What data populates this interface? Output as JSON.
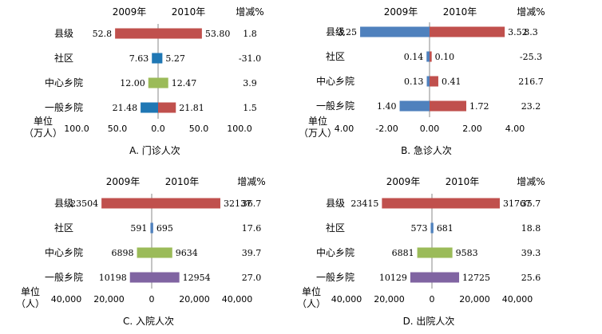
{
  "chart_data": [
    {
      "type": "bar",
      "title": "A. 门诊人次",
      "left_header": "2009年",
      "right_header": "2010年",
      "change_header": "增减%",
      "unit_label": [
        "单位",
        "（万人）"
      ],
      "categories": [
        "县级",
        "社区",
        "中心乡院",
        "一般乡院"
      ],
      "series": [
        {
          "values": [
            52.8,
            7.63,
            12.0,
            21.48
          ],
          "labels": [
            "52.8",
            "7.63",
            "12.00",
            "21.48"
          ]
        },
        {
          "values": [
            53.8,
            5.27,
            12.47,
            21.81
          ],
          "labels": [
            "53.80",
            "5.27",
            "12.47",
            "21.81"
          ]
        }
      ],
      "changes": [
        "1.8",
        "-31.0",
        "3.9",
        "1.5"
      ],
      "xlim": [
        -100,
        100
      ],
      "ticks": [
        -100,
        -50,
        0,
        50,
        100
      ],
      "tick_labels": [
        "100.0",
        "50.0",
        "0.0",
        "50.0",
        "100.0"
      ],
      "colors": {
        "neg_tick": "#c0392b",
        "pos_tick": "#000000",
        "bars_2009": [
          "#c0504d",
          "#1f77b4",
          "#9bbb59",
          "#1f77b4"
        ],
        "bars_2010": [
          "#c0504d",
          "#1f77b4",
          "#9bbb59",
          "#c0504d"
        ]
      }
    },
    {
      "type": "bar",
      "title": "B. 急诊人次",
      "left_header": "2009年",
      "right_header": "2010年",
      "change_header": "增减%",
      "unit_label": [
        "单位",
        "（万人）"
      ],
      "categories": [
        "县级",
        "社区",
        "中心乡院",
        "一般乡院"
      ],
      "series": [
        {
          "values": [
            3.25,
            0.14,
            0.13,
            1.4
          ],
          "labels": [
            "3.25",
            "0.14",
            "0.13",
            "1.40"
          ]
        },
        {
          "values": [
            3.52,
            0.1,
            0.41,
            1.72
          ],
          "labels": [
            "3.52",
            "0.10",
            "0.41",
            "1.72"
          ]
        }
      ],
      "changes": [
        "8.3",
        "-25.3",
        "216.7",
        "23.2"
      ],
      "xlim": [
        -4,
        4
      ],
      "ticks": [
        -4,
        -2,
        0,
        2,
        4
      ],
      "tick_labels": [
        "4.00",
        "-2.00",
        "0.00",
        "2.00",
        "4.00"
      ],
      "colors": {
        "neg_tick": "#000000",
        "pos_tick": "#000000",
        "bars_2009": [
          "#4f81bd",
          "#4f81bd",
          "#4f81bd",
          "#4f81bd"
        ],
        "bars_2010": [
          "#c0504d",
          "#c0504d",
          "#c0504d",
          "#c0504d"
        ]
      }
    },
    {
      "type": "bar",
      "title": "C. 入院人次",
      "left_header": "2009年",
      "right_header": "2010年",
      "change_header": "增减%",
      "unit_label": [
        "单位",
        "（人）"
      ],
      "categories": [
        "县级",
        "社区",
        "中心乡院",
        "一般乡院"
      ],
      "series": [
        {
          "values": [
            23504,
            591,
            6898,
            10198
          ],
          "labels": [
            "23504",
            "591",
            "6898",
            "10198"
          ]
        },
        {
          "values": [
            32137,
            695,
            9634,
            12954
          ],
          "labels": [
            "32137",
            "695",
            "9634",
            "12954"
          ]
        }
      ],
      "changes": [
        "36.7",
        "17.6",
        "39.7",
        "27.0"
      ],
      "xlim": [
        -40000,
        40000
      ],
      "ticks": [
        -40000,
        -20000,
        0,
        20000,
        40000
      ],
      "tick_labels": [
        "40,000",
        "20,000",
        "0",
        "20,000",
        "40,000"
      ],
      "colors": {
        "neg_tick": "#c0392b",
        "pos_tick": "#000000",
        "bars_2009": [
          "#c0504d",
          "#4f81bd",
          "#9bbb59",
          "#8064a2"
        ],
        "bars_2010": [
          "#c0504d",
          "#4f81bd",
          "#9bbb59",
          "#8064a2"
        ]
      }
    },
    {
      "type": "bar",
      "title": "D. 出院人次",
      "left_header": "2009年",
      "right_header": "2010年",
      "change_header": "增减%",
      "unit_label": [
        "单位",
        "（人）"
      ],
      "categories": [
        "县级",
        "社区",
        "中心乡院",
        "一般乡院"
      ],
      "series": [
        {
          "values": [
            23415,
            573,
            6881,
            10129
          ],
          "labels": [
            "23415",
            "573",
            "6881",
            "10129"
          ]
        },
        {
          "values": [
            31767,
            681,
            9583,
            12725
          ],
          "labels": [
            "31767",
            "681",
            "9583",
            "12725"
          ]
        }
      ],
      "changes": [
        "35.7",
        "18.8",
        "39.3",
        "25.6"
      ],
      "xlim": [
        -40000,
        40000
      ],
      "ticks": [
        -40000,
        -20000,
        0,
        20000,
        40000
      ],
      "tick_labels": [
        "40,000",
        "20,000",
        "0",
        "20,000",
        "40,000"
      ],
      "colors": {
        "neg_tick": "#c0392b",
        "pos_tick": "#000000",
        "bars_2009": [
          "#c0504d",
          "#4f81bd",
          "#9bbb59",
          "#8064a2"
        ],
        "bars_2010": [
          "#c0504d",
          "#4f81bd",
          "#9bbb59",
          "#8064a2"
        ]
      }
    }
  ]
}
